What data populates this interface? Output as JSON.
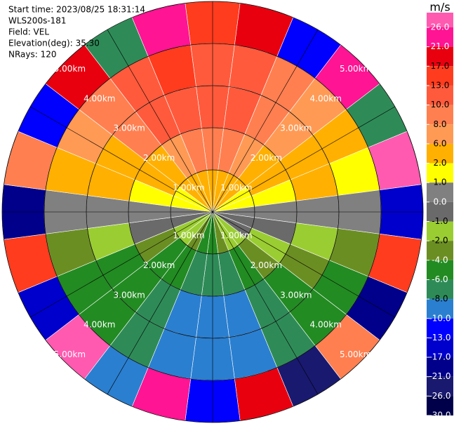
{
  "chart_data": {
    "type": "ppi",
    "info": [
      "Start time: 2023/08/25 18:31:14",
      "WLS200s-181",
      "Field: VEL",
      "Elevation(deg): 35.30",
      "NRays: 120"
    ],
    "colorbar_title": "m/s",
    "colorbar_ticks": [
      {
        "value": 26,
        "label": "26.0"
      },
      {
        "value": 21,
        "label": "21.0"
      },
      {
        "value": 17,
        "label": "17.0"
      },
      {
        "value": 13,
        "label": "13.0"
      },
      {
        "value": 10,
        "label": "10.0"
      },
      {
        "value": 8,
        "label": "8.0"
      },
      {
        "value": 6,
        "label": "6.0"
      },
      {
        "value": 2,
        "label": "2.0"
      },
      {
        "value": 1,
        "label": "1.0"
      },
      {
        "value": 0,
        "label": "0.0"
      },
      {
        "value": -1,
        "label": "-1.0"
      },
      {
        "value": -2,
        "label": "-2.0"
      },
      {
        "value": -4,
        "label": "-4.0"
      },
      {
        "value": -6,
        "label": "-6.0"
      },
      {
        "value": -8,
        "label": "-8.0"
      },
      {
        "value": -10,
        "label": "-10.0"
      },
      {
        "value": -13,
        "label": "-13.0"
      },
      {
        "value": -17,
        "label": "-17.0"
      },
      {
        "value": -21,
        "label": "-21.0"
      },
      {
        "value": -26,
        "label": "-26.0"
      },
      {
        "value": -30,
        "label": "-30.0"
      }
    ],
    "colors": [
      "#ff5ab0",
      "#ff1493",
      "#e8000f",
      "#ff3c1e",
      "#ff5a3c",
      "#ff7f50",
      "#ff9a55",
      "#ffb000",
      "#ffff00",
      "#808080",
      "#6a6a6a",
      "#9acd32",
      "#6b8e23",
      "#228b22",
      "#2e8b57",
      "#2a7fd0",
      "#0000ff",
      "#0000cd",
      "#00008b",
      "#191970",
      "#00004a"
    ],
    "range_rings": [
      {
        "value": 1,
        "label": "1.00km"
      },
      {
        "value": 2,
        "label": "2.00km"
      },
      {
        "value": 3,
        "label": "3.00km"
      },
      {
        "value": 4,
        "label": "4.00km"
      },
      {
        "value": 5,
        "label": "5.00km"
      }
    ],
    "azimuths": [
      0,
      15,
      30,
      45,
      60,
      75,
      90,
      105,
      120,
      135,
      150,
      165,
      180,
      195,
      210,
      225,
      240,
      255,
      270,
      285,
      300,
      315,
      330,
      345
    ],
    "values": [
      [
        3,
        8,
        10,
        10,
        13
      ],
      [
        3,
        8,
        10,
        10,
        17
      ],
      [
        2,
        6,
        8,
        8,
        -13
      ],
      [
        2,
        4,
        6,
        6,
        21
      ],
      [
        1,
        3,
        4,
        3,
        -8
      ],
      [
        1,
        1,
        2,
        1,
        26
      ],
      [
        0,
        0,
        0,
        0,
        -17
      ],
      [
        -1,
        -1,
        -2,
        -3,
        13
      ],
      [
        -1,
        -2,
        -4,
        -6,
        -21
      ],
      [
        -2,
        -4,
        -6,
        -6,
        8
      ],
      [
        -2,
        -6,
        -8,
        -8,
        -26
      ],
      [
        -4,
        -8,
        -9,
        -9,
        17
      ],
      [
        -5,
        -8,
        -9,
        -9,
        -13
      ],
      [
        -5,
        -8,
        -9,
        -9,
        21
      ],
      [
        -4,
        -6,
        -8,
        -7,
        -10
      ],
      [
        -2,
        -5,
        -6,
        -6,
        26
      ],
      [
        -2,
        -3,
        -5,
        -5,
        -17
      ],
      [
        -1,
        -1,
        -2,
        -3,
        13
      ],
      [
        0,
        0,
        0,
        0,
        -21
      ],
      [
        1,
        1,
        2,
        3,
        8
      ],
      [
        1,
        3,
        4,
        6,
        -13
      ],
      [
        2,
        5,
        8,
        8,
        17
      ],
      [
        3,
        6,
        10,
        10,
        -8
      ],
      [
        3,
        8,
        10,
        13,
        21
      ]
    ]
  }
}
